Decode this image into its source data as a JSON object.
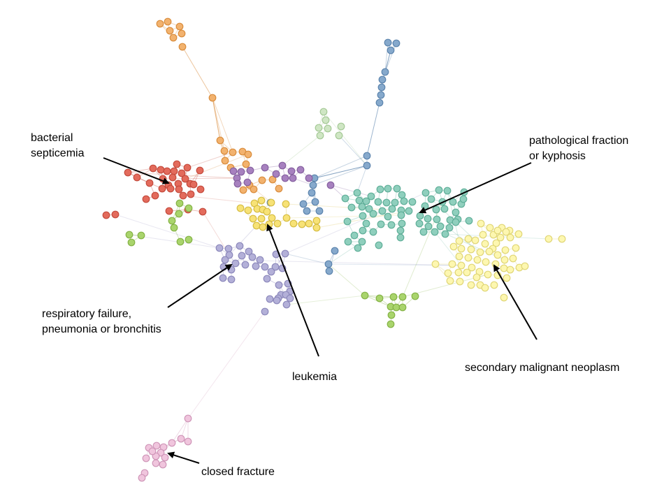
{
  "annotations": [
    {
      "id": "bacterial",
      "lines": [
        "bacterial",
        "septicemia"
      ]
    },
    {
      "id": "pathological",
      "lines": [
        "pathological fraction",
        "or kyphosis"
      ]
    },
    {
      "id": "respiratory",
      "lines": [
        "respiratory failure,",
        "pneumonia or bronchitis"
      ]
    },
    {
      "id": "leukemia",
      "lines": [
        "leukemia"
      ]
    },
    {
      "id": "secondary",
      "lines": [
        "secondary malignant neoplasm"
      ]
    },
    {
      "id": "closed",
      "lines": [
        "closed fracture"
      ]
    }
  ],
  "colors": {
    "orange": {
      "fill": "#f2b26e",
      "stroke": "#d98c3c"
    },
    "blue": {
      "fill": "#86a9cc",
      "stroke": "#5c84ad"
    },
    "lightgreen": {
      "fill": "#cfe6c4",
      "stroke": "#a5c996"
    },
    "red": {
      "fill": "#e36b5c",
      "stroke": "#c44a3c"
    },
    "purple": {
      "fill": "#a781bf",
      "stroke": "#85609f"
    },
    "yellow": {
      "fill": "#f7e276",
      "stroke": "#d6bd43"
    },
    "green": {
      "fill": "#a9d46c",
      "stroke": "#84b245"
    },
    "teal": {
      "fill": "#8fcfbd",
      "stroke": "#5fae98"
    },
    "paleyellow": {
      "fill": "#fdf7b0",
      "stroke": "#e0d676"
    },
    "lavender": {
      "fill": "#b3b0d8",
      "stroke": "#8c88bb"
    },
    "pink": {
      "fill": "#f0c5dd",
      "stroke": "#cf96b8"
    }
  }
}
